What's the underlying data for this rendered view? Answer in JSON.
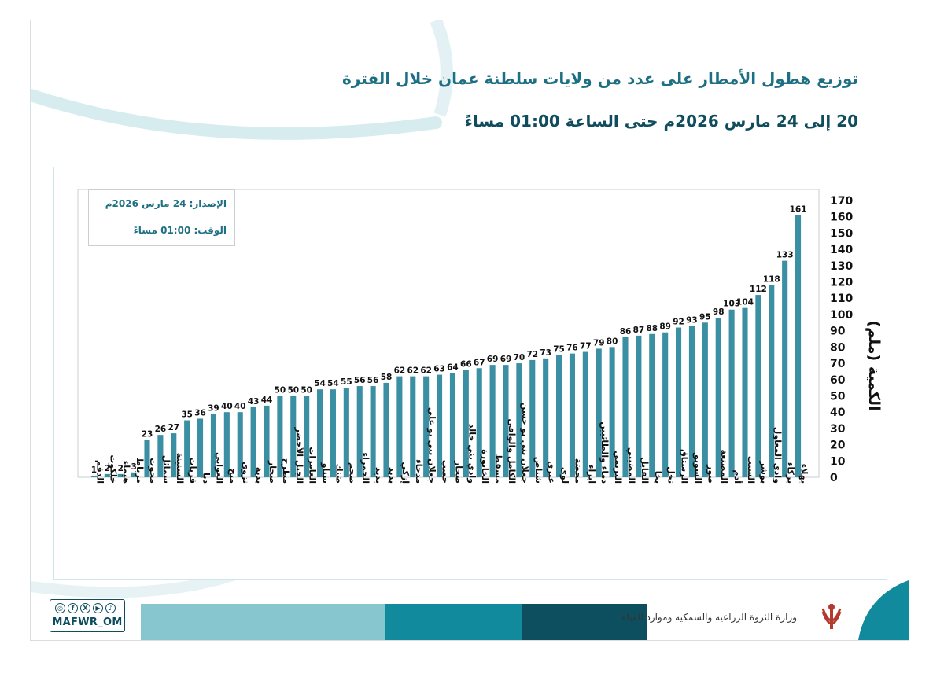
{
  "header": {
    "title_line1": "توزيع هطول الأمطار على عدد من ولايات سلطنة عمان خلال الفترة",
    "title_line2": "20 إلى 24 مارس  2026م حتى الساعة 01:00 مساءً"
  },
  "info_box": {
    "issue": "الإصدار: 24 مارس 2026م",
    "time": "الوقت: 01:00  مساءً"
  },
  "footer": {
    "social_handle": "MAFWR_OM",
    "ministry": "وزارة الثروة الزراعية والسمكية وموارد المياه",
    "bar_colors": [
      "#88c6cf",
      "#128a9e",
      "#0d4f5f"
    ]
  },
  "colors": {
    "bar": "#3b8fa3",
    "title": "#1d6f83",
    "accent_light": "#d7ecef"
  },
  "chart_data": {
    "type": "bar",
    "ylabel": "الكمية (ملم)",
    "ylim": [
      0,
      170
    ],
    "yticks": [
      0,
      10,
      20,
      30,
      40,
      50,
      60,
      70,
      80,
      90,
      100,
      110,
      120,
      130,
      140,
      150,
      160,
      170
    ],
    "grid": false,
    "data_labels": true,
    "categories": [
      "الدقم",
      "خلكوت",
      "هيماء",
      "مرباط",
      "محوت",
      "سمائل",
      "السنينة",
      "قريات",
      "دبا",
      "العوابي",
      "منح",
      "نزوى",
      "بدية",
      "صحار",
      "مطرح",
      "الجبل الأخضر",
      "العامرات",
      "سناو",
      "ضنك",
      "صحم",
      "الحمراء",
      "بديد",
      "بدبد",
      "إزكي",
      "مدحاء",
      "جعلان بني بو علي",
      "خصب",
      "صحار",
      "وادي بني خالد",
      "الخابورة",
      "مسقط",
      "الكامل والوافي",
      "جعلان بني بو حسن",
      "شناص",
      "عبري",
      "لوى",
      "محضة",
      "ابراء",
      "دماء والطائيين",
      "البريمي",
      "المضيبي",
      "القابل",
      "بخا",
      "نخل",
      "الرستاق",
      "السويق",
      "صور",
      "المصنعة",
      "أدم",
      "السيب",
      "بوشر",
      "وادي المعاول",
      "بركاء",
      "بهلاء"
    ],
    "values": [
      1,
      2,
      2,
      3,
      23,
      26,
      27,
      35,
      36,
      39,
      40,
      40,
      43,
      44,
      50,
      50,
      50,
      54,
      54,
      55,
      56,
      56,
      58,
      62,
      62,
      62,
      63,
      64,
      66,
      67,
      69,
      69,
      70,
      72,
      73,
      75,
      76,
      77,
      79,
      80,
      86,
      87,
      88,
      89,
      92,
      93,
      95,
      98,
      103,
      104,
      112,
      118,
      133,
      161
    ]
  }
}
